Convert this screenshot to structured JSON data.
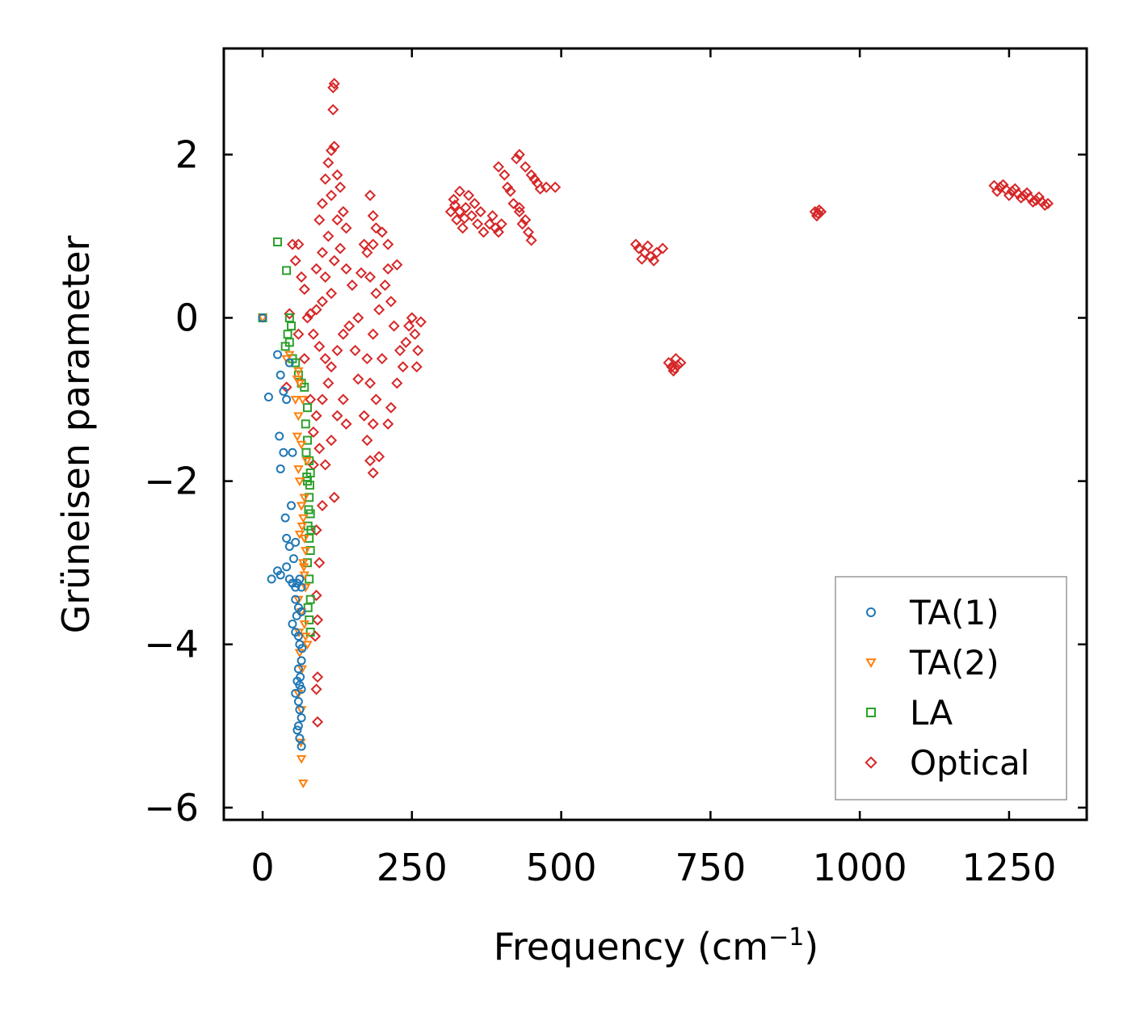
{
  "chart_data": {
    "type": "scatter",
    "title": "",
    "xlabel": "Frequency (cm",
    "xlabel_superscript": "−1",
    "xlabel_suffix": ")",
    "ylabel": "Grüneisen parameter",
    "xlim": [
      -65,
      1380
    ],
    "ylim": [
      -6.15,
      3.3
    ],
    "xticks": [
      0,
      250,
      500,
      750,
      1000,
      1250
    ],
    "xtick_labels": [
      "0",
      "250",
      "500",
      "750",
      "1000",
      "1250"
    ],
    "yticks": [
      -6,
      -4,
      -2,
      0,
      2
    ],
    "ytick_labels": [
      "−6",
      "−4",
      "−2",
      "0",
      "2"
    ],
    "grid": false,
    "legend_position": "bottom-right",
    "series": [
      {
        "name": "TA(1)",
        "marker": "circle",
        "color": "#1f77b4",
        "points": [
          [
            0,
            0
          ],
          [
            10,
            -0.97
          ],
          [
            25,
            -0.45
          ],
          [
            30,
            -0.7
          ],
          [
            35,
            -0.9
          ],
          [
            40,
            -1.0
          ],
          [
            45,
            -0.55
          ],
          [
            28,
            -1.45
          ],
          [
            30,
            -1.85
          ],
          [
            35,
            -1.65
          ],
          [
            50,
            -1.65
          ],
          [
            48,
            -2.3
          ],
          [
            38,
            -2.45
          ],
          [
            40,
            -2.7
          ],
          [
            45,
            -2.8
          ],
          [
            55,
            -2.75
          ],
          [
            52,
            -2.95
          ],
          [
            15,
            -3.2
          ],
          [
            25,
            -3.1
          ],
          [
            30,
            -3.15
          ],
          [
            40,
            -3.05
          ],
          [
            45,
            -3.2
          ],
          [
            50,
            -3.25
          ],
          [
            55,
            -3.3
          ],
          [
            58,
            -3.25
          ],
          [
            62,
            -3.2
          ],
          [
            65,
            -3.3
          ],
          [
            55,
            -3.45
          ],
          [
            60,
            -3.55
          ],
          [
            65,
            -3.6
          ],
          [
            50,
            -3.75
          ],
          [
            55,
            -3.85
          ],
          [
            60,
            -3.9
          ],
          [
            62,
            -4.0
          ],
          [
            65,
            -4.2
          ],
          [
            60,
            -4.3
          ],
          [
            58,
            -4.45
          ],
          [
            62,
            -4.5
          ],
          [
            65,
            -4.55
          ],
          [
            55,
            -4.6
          ],
          [
            60,
            -4.7
          ],
          [
            62,
            -4.8
          ],
          [
            65,
            -4.9
          ],
          [
            60,
            -5.0
          ],
          [
            62,
            -5.15
          ],
          [
            65,
            -5.25
          ],
          [
            58,
            -5.05
          ],
          [
            63,
            -4.4
          ],
          [
            66,
            -4.05
          ],
          [
            57,
            -3.65
          ]
        ]
      },
      {
        "name": "TA(2)",
        "marker": "triangle",
        "color": "#ff7f0e",
        "points": [
          [
            0,
            0
          ],
          [
            40,
            -0.5
          ],
          [
            45,
            -0.45
          ],
          [
            60,
            -0.65
          ],
          [
            62,
            -0.8
          ],
          [
            55,
            -1.0
          ],
          [
            60,
            -1.2
          ],
          [
            58,
            -1.45
          ],
          [
            65,
            -1.55
          ],
          [
            60,
            -1.85
          ],
          [
            62,
            -2.0
          ],
          [
            65,
            -2.3
          ],
          [
            68,
            -2.45
          ],
          [
            62,
            -2.65
          ],
          [
            70,
            -2.7
          ],
          [
            72,
            -2.85
          ],
          [
            68,
            -3.0
          ],
          [
            70,
            -3.15
          ],
          [
            72,
            -3.3
          ],
          [
            60,
            -3.45
          ],
          [
            65,
            -3.6
          ],
          [
            70,
            -3.75
          ],
          [
            72,
            -3.9
          ],
          [
            75,
            -4.0
          ],
          [
            62,
            -4.1
          ],
          [
            66,
            -4.3
          ],
          [
            60,
            -4.6
          ],
          [
            65,
            -4.8
          ],
          [
            64,
            -5.2
          ],
          [
            65,
            -5.4
          ],
          [
            68,
            -5.7
          ],
          [
            70,
            -2.2
          ],
          [
            74,
            -1.75
          ],
          [
            67,
            -1.0
          ],
          [
            58,
            -0.75
          ],
          [
            66,
            -2.55
          ],
          [
            61,
            -3.85
          ],
          [
            69,
            -3.05
          ]
        ]
      },
      {
        "name": "LA",
        "marker": "square",
        "color": "#2ca02c",
        "points": [
          [
            0,
            0
          ],
          [
            25,
            0.93
          ],
          [
            40,
            0.58
          ],
          [
            45,
            0.0
          ],
          [
            48,
            -0.1
          ],
          [
            42,
            -0.2
          ],
          [
            45,
            -0.3
          ],
          [
            38,
            -0.35
          ],
          [
            50,
            -0.5
          ],
          [
            55,
            -0.55
          ],
          [
            60,
            -0.7
          ],
          [
            65,
            -0.8
          ],
          [
            70,
            -0.85
          ],
          [
            75,
            -1.1
          ],
          [
            72,
            -1.3
          ],
          [
            75,
            -1.5
          ],
          [
            78,
            -1.75
          ],
          [
            80,
            -1.9
          ],
          [
            75,
            -2.0
          ],
          [
            78,
            -2.2
          ],
          [
            80,
            -2.4
          ],
          [
            76,
            -2.55
          ],
          [
            78,
            -2.7
          ],
          [
            80,
            -2.85
          ],
          [
            75,
            -3.0
          ],
          [
            78,
            -3.2
          ],
          [
            80,
            -3.45
          ],
          [
            76,
            -3.55
          ],
          [
            78,
            -3.7
          ],
          [
            80,
            -3.85
          ],
          [
            74,
            -1.95
          ],
          [
            79,
            -2.05
          ],
          [
            77,
            -2.35
          ],
          [
            81,
            -2.6
          ],
          [
            73,
            -1.65
          ]
        ]
      },
      {
        "name": "Optical",
        "marker": "diamond",
        "color": "#d62728",
        "points": [
          [
            120,
            2.87
          ],
          [
            118,
            2.82
          ],
          [
            118,
            2.55
          ],
          [
            120,
            2.1
          ],
          [
            115,
            2.05
          ],
          [
            110,
            1.9
          ],
          [
            105,
            1.7
          ],
          [
            100,
            1.4
          ],
          [
            95,
            1.2
          ],
          [
            115,
            1.5
          ],
          [
            125,
            1.75
          ],
          [
            130,
            1.6
          ],
          [
            135,
            1.3
          ],
          [
            140,
            1.1
          ],
          [
            125,
            1.2
          ],
          [
            110,
            1.0
          ],
          [
            100,
            0.8
          ],
          [
            90,
            0.6
          ],
          [
            105,
            0.5
          ],
          [
            120,
            0.7
          ],
          [
            130,
            0.85
          ],
          [
            140,
            0.6
          ],
          [
            150,
            0.4
          ],
          [
            115,
            0.3
          ],
          [
            100,
            0.2
          ],
          [
            90,
            0.1
          ],
          [
            80,
            0.05
          ],
          [
            75,
            0.0
          ],
          [
            85,
            -0.2
          ],
          [
            95,
            -0.35
          ],
          [
            105,
            -0.5
          ],
          [
            115,
            -0.6
          ],
          [
            125,
            -0.4
          ],
          [
            135,
            -0.2
          ],
          [
            145,
            -0.1
          ],
          [
            155,
            -0.4
          ],
          [
            110,
            -0.8
          ],
          [
            100,
            -1.0
          ],
          [
            90,
            -1.2
          ],
          [
            85,
            -1.4
          ],
          [
            95,
            -1.6
          ],
          [
            105,
            -1.8
          ],
          [
            115,
            -1.5
          ],
          [
            125,
            -1.2
          ],
          [
            135,
            -1.0
          ],
          [
            140,
            -1.3
          ],
          [
            120,
            -2.2
          ],
          [
            100,
            -2.3
          ],
          [
            90,
            -2.6
          ],
          [
            95,
            -3.0
          ],
          [
            90,
            -3.4
          ],
          [
            92,
            -3.7
          ],
          [
            88,
            -3.9
          ],
          [
            92,
            -4.4
          ],
          [
            90,
            -4.55
          ],
          [
            92,
            -4.95
          ],
          [
            50,
            0.9
          ],
          [
            60,
            0.9
          ],
          [
            55,
            0.7
          ],
          [
            65,
            0.5
          ],
          [
            70,
            0.35
          ],
          [
            45,
            0.05
          ],
          [
            60,
            -0.2
          ],
          [
            70,
            -0.5
          ],
          [
            80,
            -1.0
          ],
          [
            85,
            -1.8
          ],
          [
            40,
            -0.85
          ],
          [
            180,
            1.5
          ],
          [
            185,
            1.25
          ],
          [
            190,
            1.1
          ],
          [
            185,
            0.9
          ],
          [
            175,
            0.8
          ],
          [
            180,
            0.5
          ],
          [
            190,
            0.3
          ],
          [
            195,
            0.1
          ],
          [
            185,
            -0.2
          ],
          [
            175,
            -0.5
          ],
          [
            180,
            -0.8
          ],
          [
            190,
            -1.0
          ],
          [
            185,
            -1.3
          ],
          [
            175,
            -1.5
          ],
          [
            180,
            -1.75
          ],
          [
            185,
            -1.9
          ],
          [
            195,
            -1.7
          ],
          [
            170,
            -1.2
          ],
          [
            200,
            -0.5
          ],
          [
            210,
            0.6
          ],
          [
            210,
            0.9
          ],
          [
            215,
            0.2
          ],
          [
            220,
            -0.1
          ],
          [
            230,
            -0.4
          ],
          [
            225,
            -0.8
          ],
          [
            235,
            -0.6
          ],
          [
            240,
            -0.3
          ],
          [
            245,
            -0.1
          ],
          [
            250,
            0.0
          ],
          [
            255,
            -0.2
          ],
          [
            260,
            -0.4
          ],
          [
            265,
            -0.05
          ],
          [
            258,
            -0.6
          ],
          [
            215,
            -1.1
          ],
          [
            210,
            -1.3
          ],
          [
            205,
            0.4
          ],
          [
            225,
            0.65
          ],
          [
            165,
            0.55
          ],
          [
            160,
            0.0
          ],
          [
            170,
            0.9
          ],
          [
            200,
            1.05
          ],
          [
            160,
            -0.75
          ],
          [
            330,
            1.55
          ],
          [
            320,
            1.45
          ],
          [
            315,
            1.3
          ],
          [
            325,
            1.2
          ],
          [
            335,
            1.1
          ],
          [
            340,
            1.35
          ],
          [
            350,
            1.25
          ],
          [
            360,
            1.15
          ],
          [
            370,
            1.05
          ],
          [
            355,
            1.4
          ],
          [
            345,
            1.5
          ],
          [
            380,
            1.15
          ],
          [
            390,
            1.1
          ],
          [
            395,
            1.05
          ],
          [
            385,
            1.25
          ],
          [
            400,
            1.15
          ],
          [
            365,
            1.3
          ],
          [
            330,
            1.3
          ],
          [
            322,
            1.38
          ],
          [
            338,
            1.22
          ],
          [
            395,
            1.85
          ],
          [
            405,
            1.75
          ],
          [
            410,
            1.6
          ],
          [
            420,
            1.4
          ],
          [
            430,
            1.3
          ],
          [
            435,
            1.15
          ],
          [
            445,
            1.05
          ],
          [
            450,
            0.95
          ],
          [
            425,
            1.95
          ],
          [
            430,
            2.0
          ],
          [
            440,
            1.85
          ],
          [
            450,
            1.75
          ],
          [
            460,
            1.65
          ],
          [
            475,
            1.6
          ],
          [
            490,
            1.6
          ],
          [
            415,
            1.55
          ],
          [
            440,
            1.2
          ],
          [
            455,
            1.7
          ],
          [
            465,
            1.58
          ],
          [
            430,
            1.35
          ],
          [
            625,
            0.9
          ],
          [
            630,
            0.85
          ],
          [
            640,
            0.8
          ],
          [
            650,
            0.75
          ],
          [
            660,
            0.8
          ],
          [
            670,
            0.85
          ],
          [
            645,
            0.88
          ],
          [
            635,
            0.72
          ],
          [
            655,
            0.7
          ],
          [
            680,
            -0.55
          ],
          [
            685,
            -0.6
          ],
          [
            690,
            -0.62
          ],
          [
            695,
            -0.58
          ],
          [
            700,
            -0.55
          ],
          [
            688,
            -0.65
          ],
          [
            692,
            -0.5
          ],
          [
            925,
            1.3
          ],
          [
            930,
            1.28
          ],
          [
            935,
            1.3
          ],
          [
            928,
            1.25
          ],
          [
            932,
            1.32
          ],
          [
            1225,
            1.62
          ],
          [
            1235,
            1.6
          ],
          [
            1245,
            1.57
          ],
          [
            1255,
            1.55
          ],
          [
            1265,
            1.52
          ],
          [
            1275,
            1.5
          ],
          [
            1285,
            1.47
          ],
          [
            1295,
            1.44
          ],
          [
            1305,
            1.42
          ],
          [
            1315,
            1.4
          ],
          [
            1230,
            1.55
          ],
          [
            1250,
            1.5
          ],
          [
            1270,
            1.47
          ],
          [
            1290,
            1.42
          ],
          [
            1310,
            1.38
          ],
          [
            1240,
            1.63
          ],
          [
            1260,
            1.58
          ],
          [
            1280,
            1.53
          ],
          [
            1300,
            1.48
          ]
        ]
      }
    ]
  }
}
